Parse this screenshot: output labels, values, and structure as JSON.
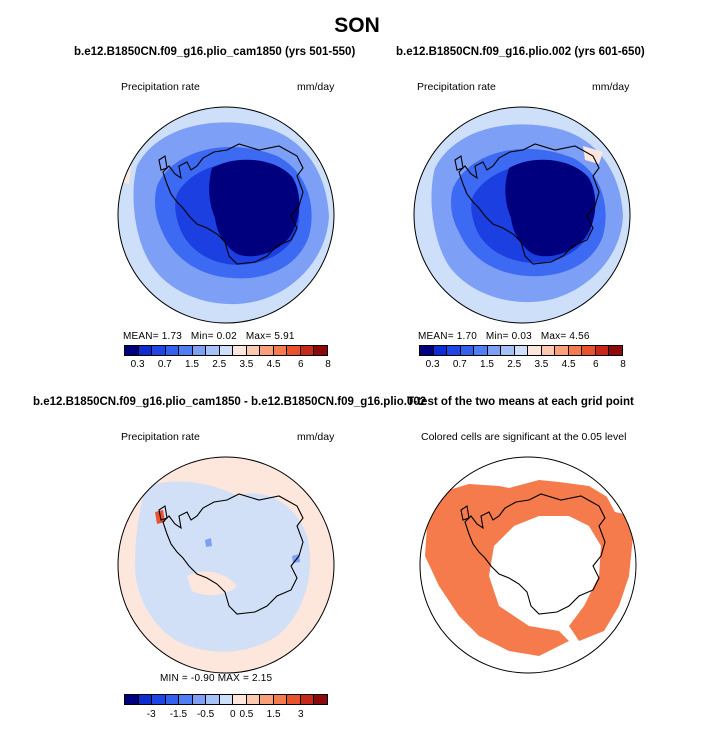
{
  "title": "SON",
  "panels": [
    {
      "title": "b.e12.B1850CN.f09_g16.plio_cam1850 (yrs 501-550)",
      "left_label": "Precipitation rate",
      "right_label": "mm/day",
      "mean_label": "MEAN=",
      "mean": "1.73",
      "min_label": "Min=",
      "min": "0.02",
      "max_label": "Max=",
      "max": "5.91"
    },
    {
      "title": "b.e12.B1850CN.f09_g16.plio.002 (yrs 601-650)",
      "left_label": "Precipitation rate",
      "right_label": "mm/day",
      "mean_label": "MEAN=",
      "mean": "1.70",
      "min_label": "Min=",
      "min": "0.03",
      "max_label": "Max=",
      "max": "4.56"
    },
    {
      "title": "b.e12.B1850CN.f09_g16.plio_cam1850 - b.e12.B1850CN.f09_g16.plio.002",
      "left_label": "Precipitation rate",
      "right_label": "mm/day",
      "stats_text": "MIN = -0.90  MAX = 2.15"
    },
    {
      "title": "T-test of the two means at each grid point",
      "subtitle": "Colored cells are significant at the 0.05 level"
    }
  ],
  "colorbar_abs": {
    "colors": [
      "#00007f",
      "#0d2dd2",
      "#1e46e6",
      "#3261f0",
      "#507ef5",
      "#7d9ff6",
      "#a6c0f8",
      "#cddff9",
      "#fde6dc",
      "#fbc8b0",
      "#f9a07a",
      "#f57b4d",
      "#e9532b",
      "#c8281a",
      "#8c0a0a"
    ],
    "ticks": [
      "0.3",
      "0.7",
      "1.5",
      "2.5",
      "3.5",
      "4.5",
      "6",
      "8"
    ]
  },
  "colorbar_diff": {
    "colors": [
      "#00007f",
      "#0d2dd2",
      "#1e46e6",
      "#3261f0",
      "#507ef5",
      "#7d9ff6",
      "#a6c0f8",
      "#cddff9",
      "#fde6dc",
      "#fbc8b0",
      "#f9a07a",
      "#f57b4d",
      "#e9532b",
      "#c8281a",
      "#8c0a0a"
    ],
    "ticks": [
      "-3",
      "-1.5",
      "-0.5",
      "0",
      "0.5",
      "1.5",
      "3"
    ]
  },
  "colors": {
    "ocean_light": "#cddff9",
    "precip_mid": "#7d9ff6",
    "precip_high": "#3d6af2",
    "precip_max": "#1b3fe0",
    "interior": "#00007f",
    "positive": "#fde6dc",
    "significant": "#f57b4d"
  }
}
